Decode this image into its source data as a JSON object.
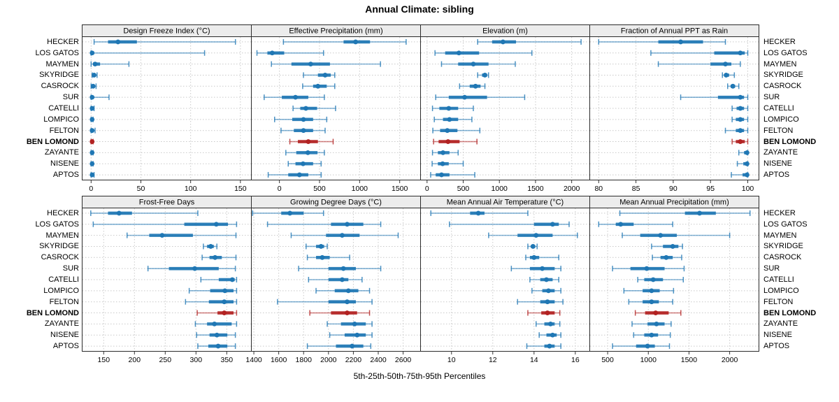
{
  "title": "Annual Climate: sibling",
  "caption": "5th-25th-50th-75th-95th Percentiles",
  "highlight_station": "BEN LOMOND",
  "colors": {
    "normal": "#1F77B4",
    "highlight": "#B22222",
    "strip_bg": "#ECECEC",
    "grid": "#C9C9C9",
    "border": "#2B2B2B",
    "tick": "#333333",
    "text": "#000000"
  },
  "stations": [
    "HECKER",
    "LOS GATOS",
    "MAYMEN",
    "SKYRIDGE",
    "CASROCK",
    "SUR",
    "CATELLI",
    "LOMPICO",
    "FELTON",
    "BEN LOMOND",
    "ZAYANTE",
    "NISENE",
    "APTOS"
  ],
  "chart_data": {
    "type": "dotplot",
    "subtype": "trellis-percentile-intervals",
    "percentiles": [
      "5th",
      "25th",
      "50th",
      "75th",
      "95th"
    ],
    "legend_position": "none",
    "grid": "dashed-both-directions",
    "panels": [
      {
        "title": "Design Freeze Index (°C)",
        "row": 0,
        "xlim": [
          -9,
          161
        ],
        "ticks": [
          0,
          50,
          100,
          150
        ],
        "values": [
          [
            3,
            17,
            27,
            46,
            145
          ],
          [
            0,
            0,
            1,
            3,
            114
          ],
          [
            0,
            2,
            4,
            9,
            38
          ],
          [
            1,
            2,
            3,
            4,
            6
          ],
          [
            0,
            1,
            2,
            3,
            5
          ],
          [
            0,
            0,
            1,
            2,
            18
          ],
          [
            0,
            0,
            1,
            2,
            3
          ],
          [
            0,
            0,
            1,
            1,
            2
          ],
          [
            0,
            0,
            1,
            2,
            4
          ],
          [
            0,
            0,
            1,
            1,
            2
          ],
          [
            0,
            0,
            1,
            1,
            2
          ],
          [
            0,
            0,
            1,
            1,
            2
          ],
          [
            0,
            0,
            1,
            2,
            3
          ]
        ]
      },
      {
        "title": "Effective Precipitation (mm)",
        "row": 0,
        "xlim": [
          -350,
          1760
        ],
        "ticks": [
          0,
          500,
          1000,
          1500
        ],
        "values": [
          [
            50,
            800,
            950,
            1130,
            1580
          ],
          [
            -280,
            -150,
            -90,
            60,
            550
          ],
          [
            -100,
            150,
            390,
            630,
            1260
          ],
          [
            300,
            480,
            570,
            640,
            690
          ],
          [
            290,
            420,
            480,
            590,
            690
          ],
          [
            -190,
            30,
            200,
            360,
            560
          ],
          [
            170,
            260,
            330,
            470,
            700
          ],
          [
            -60,
            160,
            300,
            420,
            590
          ],
          [
            20,
            180,
            300,
            420,
            570
          ],
          [
            130,
            230,
            360,
            480,
            670
          ],
          [
            80,
            210,
            355,
            475,
            560
          ],
          [
            110,
            200,
            295,
            420,
            520
          ],
          [
            -140,
            110,
            250,
            360,
            520
          ]
        ]
      },
      {
        "title": "Elevation (m)",
        "row": 0,
        "xlim": [
          -90,
          2250
        ],
        "ticks": [
          0,
          500,
          1000,
          1500,
          2000
        ],
        "values": [
          [
            700,
            900,
            1050,
            1230,
            2130
          ],
          [
            110,
            250,
            440,
            720,
            1450
          ],
          [
            200,
            430,
            640,
            850,
            1220
          ],
          [
            700,
            760,
            800,
            830,
            850
          ],
          [
            450,
            590,
            670,
            740,
            800
          ],
          [
            120,
            300,
            520,
            830,
            1350
          ],
          [
            75,
            170,
            300,
            430,
            640
          ],
          [
            100,
            220,
            310,
            430,
            620
          ],
          [
            80,
            180,
            280,
            420,
            730
          ],
          [
            90,
            160,
            290,
            450,
            690
          ],
          [
            75,
            150,
            220,
            310,
            430
          ],
          [
            70,
            150,
            215,
            300,
            500
          ],
          [
            50,
            120,
            200,
            310,
            660
          ]
        ]
      },
      {
        "title": "Fraction of Annual PPT as Rain",
        "row": 0,
        "xlim": [
          78.8,
          101.5
        ],
        "ticks": [
          80,
          85,
          90,
          95,
          100
        ],
        "values": [
          [
            80,
            88,
            91,
            94,
            97
          ],
          [
            87,
            95.5,
            99,
            99.6,
            100
          ],
          [
            88,
            95,
            97,
            97.8,
            99
          ],
          [
            96.6,
            96.9,
            97.1,
            97.5,
            98.2
          ],
          [
            97.3,
            97.7,
            98,
            98.3,
            98.8
          ],
          [
            91,
            96,
            99,
            99.5,
            100
          ],
          [
            97.9,
            98.5,
            99,
            99.5,
            100
          ],
          [
            97.9,
            98.4,
            99,
            99.5,
            100
          ],
          [
            97,
            98.4,
            99,
            99.5,
            100
          ],
          [
            97.9,
            98.4,
            99,
            99.6,
            100
          ],
          [
            98.8,
            99.5,
            99.9,
            100,
            100
          ],
          [
            98.6,
            99.4,
            99.9,
            100,
            100
          ],
          [
            97.8,
            99.3,
            99.9,
            100,
            100
          ]
        ]
      },
      {
        "title": "Frost-Free Days",
        "row": 1,
        "xlim": [
          115,
          390
        ],
        "ticks": [
          150,
          200,
          250,
          300,
          350
        ],
        "values": [
          [
            129,
            157,
            175,
            196,
            303
          ],
          [
            133,
            281,
            333,
            352,
            366
          ],
          [
            188,
            224,
            245,
            295,
            365
          ],
          [
            312,
            318,
            324,
            329,
            334
          ],
          [
            310,
            322,
            331,
            342,
            365
          ],
          [
            222,
            256,
            298,
            337,
            364
          ],
          [
            308,
            337,
            359,
            363,
            366
          ],
          [
            289,
            323,
            347,
            361,
            366
          ],
          [
            283,
            321,
            346,
            361,
            366
          ],
          [
            302,
            335,
            346,
            361,
            366
          ],
          [
            299,
            318,
            330,
            358,
            366
          ],
          [
            301,
            322,
            334,
            351,
            364
          ],
          [
            303,
            320,
            336,
            351,
            364
          ]
        ]
      },
      {
        "title": "Growing Degree Days (°C)",
        "row": 1,
        "xlim": [
          1380,
          2740
        ],
        "ticks": [
          1400,
          1600,
          1800,
          2000,
          2200,
          2400,
          2600
        ],
        "values": [
          [
            1390,
            1620,
            1690,
            1800,
            1960
          ],
          [
            1510,
            2020,
            2150,
            2280,
            2420
          ],
          [
            1700,
            1980,
            2110,
            2250,
            2560
          ],
          [
            1820,
            1900,
            1940,
            1965,
            1990
          ],
          [
            1830,
            1900,
            1950,
            2010,
            2170
          ],
          [
            1760,
            2000,
            2120,
            2220,
            2420
          ],
          [
            1840,
            2000,
            2110,
            2160,
            2270
          ],
          [
            1900,
            2050,
            2160,
            2240,
            2330
          ],
          [
            1590,
            2000,
            2150,
            2220,
            2350
          ],
          [
            1850,
            2020,
            2150,
            2230,
            2330
          ],
          [
            1990,
            2100,
            2210,
            2300,
            2350
          ],
          [
            2010,
            2130,
            2230,
            2300,
            2350
          ],
          [
            1830,
            2060,
            2190,
            2280,
            2340
          ]
        ]
      },
      {
        "title": "Mean Annual Air Temperature (°C)",
        "row": 1,
        "xlim": [
          8.5,
          16.7
        ],
        "ticks": [
          10,
          12,
          14,
          16
        ],
        "values": [
          [
            9.0,
            10.9,
            11.3,
            11.6,
            13.7
          ],
          [
            9.9,
            14.0,
            14.9,
            15.2,
            15.7
          ],
          [
            11.8,
            13.2,
            14.1,
            14.9,
            16.1
          ],
          [
            13.7,
            13.85,
            13.95,
            14.05,
            14.15
          ],
          [
            13.6,
            13.8,
            14.0,
            14.25,
            15.2
          ],
          [
            12.9,
            13.8,
            14.4,
            15.0,
            15.3
          ],
          [
            13.8,
            14.3,
            14.6,
            14.9,
            15.2
          ],
          [
            13.9,
            14.4,
            14.7,
            15.0,
            15.3
          ],
          [
            13.2,
            14.3,
            14.65,
            15.0,
            15.4
          ],
          [
            13.7,
            14.35,
            14.65,
            15.0,
            15.25
          ],
          [
            14.1,
            14.5,
            14.8,
            15.0,
            15.25
          ],
          [
            14.25,
            14.6,
            14.9,
            15.1,
            15.3
          ],
          [
            13.65,
            14.5,
            14.75,
            15.0,
            15.3
          ]
        ]
      },
      {
        "title": "Mean Annual Precipitation (mm)",
        "row": 1,
        "xlim": [
          280,
          2360
        ],
        "ticks": [
          500,
          1000,
          1500,
          2000
        ],
        "values": [
          [
            650,
            1450,
            1630,
            1830,
            2250
          ],
          [
            390,
            600,
            660,
            820,
            1300
          ],
          [
            680,
            900,
            1150,
            1350,
            2000
          ],
          [
            1040,
            1180,
            1300,
            1370,
            1420
          ],
          [
            1050,
            1150,
            1220,
            1300,
            1410
          ],
          [
            560,
            780,
            980,
            1200,
            1440
          ],
          [
            870,
            950,
            1060,
            1180,
            1430
          ],
          [
            700,
            930,
            1040,
            1140,
            1310
          ],
          [
            760,
            930,
            1040,
            1130,
            1300
          ],
          [
            840,
            960,
            1090,
            1250,
            1400
          ],
          [
            800,
            990,
            1100,
            1200,
            1280
          ],
          [
            820,
            950,
            1040,
            1120,
            1270
          ],
          [
            560,
            850,
            990,
            1080,
            1260
          ]
        ]
      }
    ]
  }
}
